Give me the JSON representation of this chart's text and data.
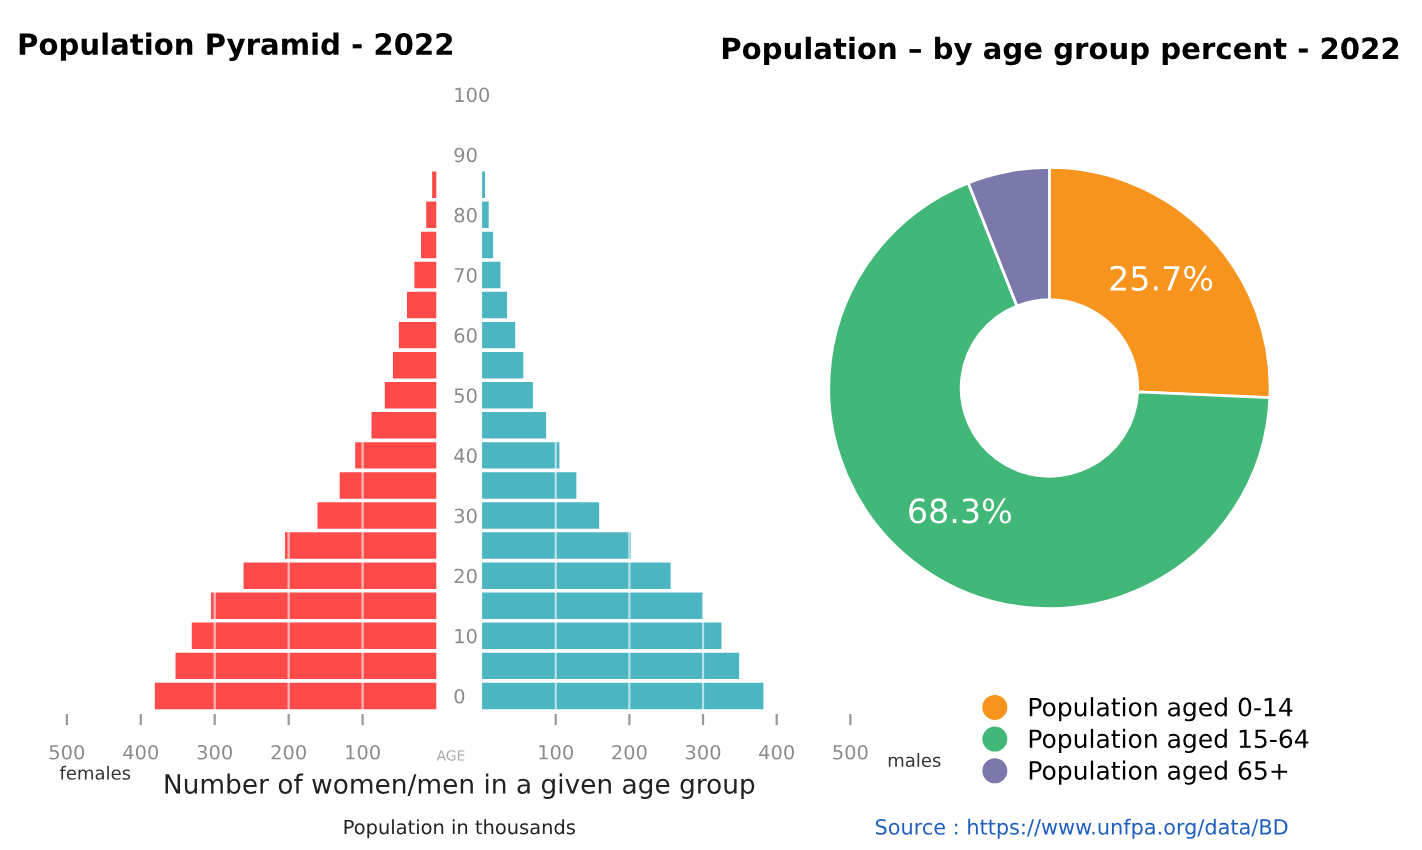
{
  "chart_data": [
    {
      "type": "bar",
      "orientation": "horizontal",
      "title": "Population Pyramid - 2022",
      "xlabel": "Number of women/men in a given age group",
      "x": [
        0,
        5,
        10,
        15,
        20,
        25,
        30,
        35,
        40,
        45,
        50,
        55,
        60,
        65,
        70,
        75,
        80,
        85
      ],
      "series": [
        {
          "name": "females",
          "color": "#ff4a4a",
          "values": [
            381,
            353,
            331,
            305,
            261,
            205,
            161,
            131,
            110,
            88,
            70,
            59,
            51,
            40,
            30,
            21,
            14,
            6
          ]
        }
      ],
      "xlim": [
        500,
        0
      ],
      "xticks": [
        500,
        400,
        300,
        200,
        100
      ],
      "ylim": [
        -3,
        103
      ],
      "yticks": [
        0,
        10,
        20,
        30,
        40,
        50,
        60,
        70,
        80,
        90,
        100
      ],
      "grid": "x",
      "annotations": [
        "AGE",
        "Population in thousands"
      ]
    },
    {
      "type": "bar",
      "orientation": "horizontal",
      "x": [
        0,
        5,
        10,
        15,
        20,
        25,
        30,
        35,
        40,
        45,
        50,
        55,
        60,
        65,
        70,
        75,
        80,
        85
      ],
      "series": [
        {
          "name": "males",
          "color": "#4bb5c1",
          "values": [
            382,
            349,
            325,
            300,
            256,
            202,
            159,
            128,
            105,
            87,
            69,
            56,
            45,
            34,
            25,
            15,
            9,
            4
          ]
        }
      ],
      "xlim": [
        0,
        500
      ],
      "xticks": [
        100,
        200,
        300,
        400,
        500
      ],
      "ylim": [
        -3,
        103
      ],
      "grid": "x",
      "tick_labels": "x"
    },
    {
      "type": "donut",
      "title": "Population – by age group percent - 2022",
      "categories": [
        "Population aged 0-14",
        "Population aged 15-64",
        "Population aged 65+"
      ],
      "values": [
        25.7,
        68.3,
        6.0
      ],
      "colors": [
        "#f7941d",
        "#41b878",
        "#7b78ab"
      ],
      "value_labels": [
        "25.7%",
        "68.3%",
        null
      ],
      "legend": "bottom",
      "annotations": [
        "Source : https://www.unfpa.org/data/BD"
      ]
    }
  ]
}
